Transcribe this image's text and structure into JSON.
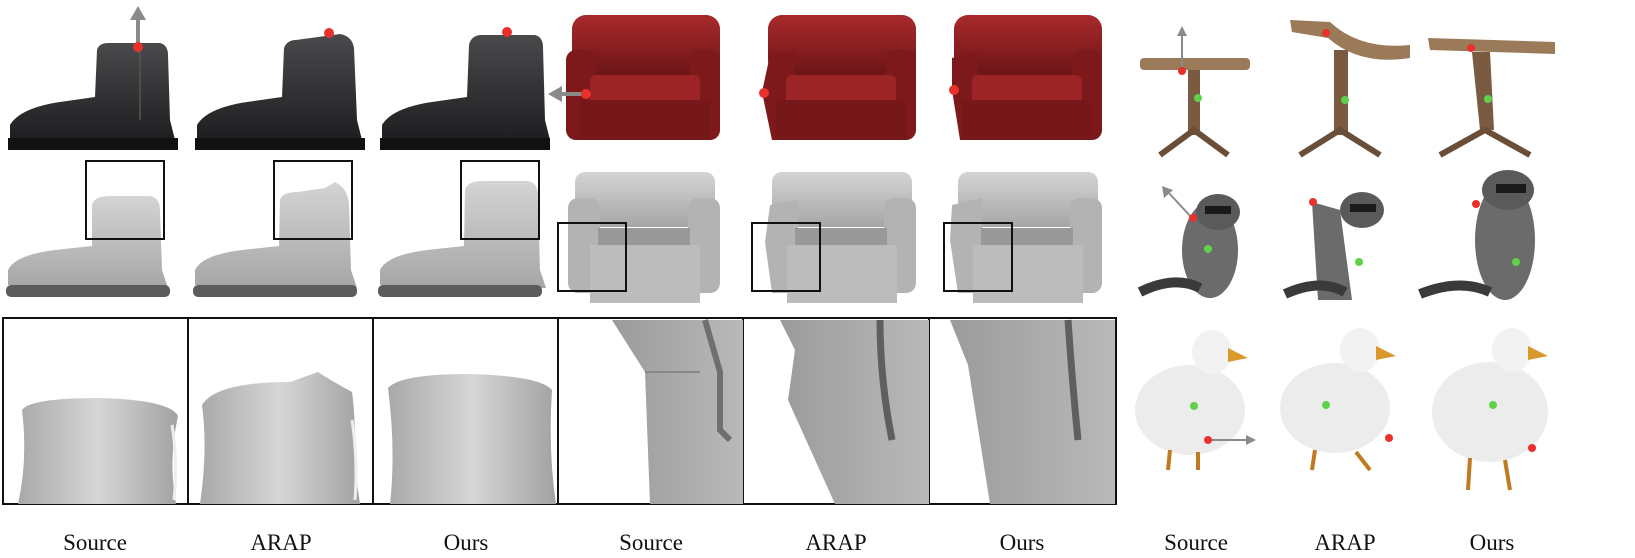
{
  "labels": {
    "boot": [
      "Source",
      "ARAP",
      "Ours"
    ],
    "chair": [
      "Source",
      "ARAP",
      "Ours"
    ],
    "right": [
      "Source",
      "ARAP",
      "Ours"
    ]
  },
  "colors": {
    "handle_point": "#e8312a",
    "anchor_point": "#5fd14a",
    "arrow": "#8a8a8a",
    "mesh_gray": "#bdbdbd",
    "boot_leather": "#2b2b2d",
    "armchair_leather": "#8e1d1f",
    "table_wood": "#8b6a4e"
  },
  "icons": {
    "drag_arrow": "arrow-icon",
    "handle": "handle-point-icon",
    "anchor": "anchor-point-icon"
  }
}
